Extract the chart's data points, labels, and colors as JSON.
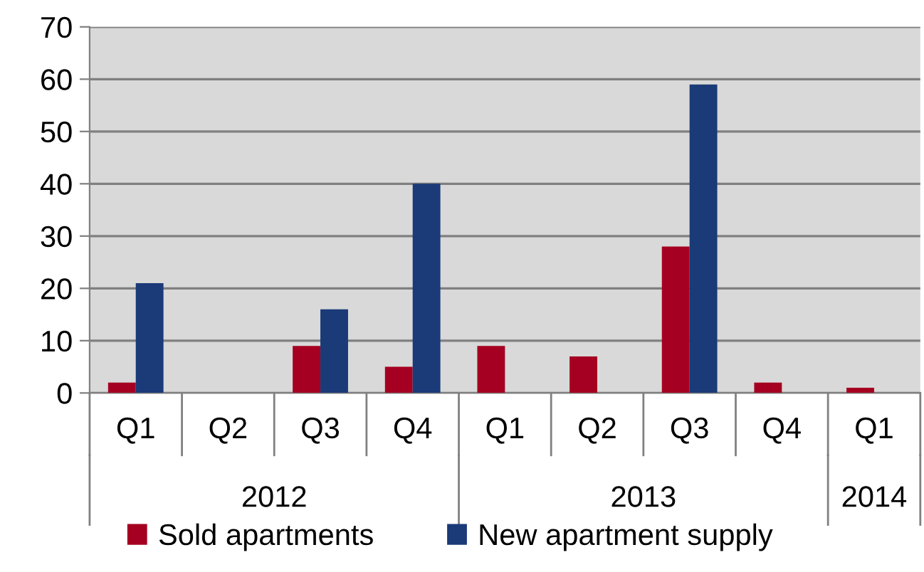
{
  "chart_data": {
    "type": "bar",
    "categories": [
      "Q1",
      "Q2",
      "Q3",
      "Q4",
      "Q1",
      "Q2",
      "Q3",
      "Q4",
      "Q1"
    ],
    "series": [
      {
        "name": "Sold apartments",
        "color": "#a50021",
        "values": [
          2,
          0,
          9,
          5,
          9,
          7,
          28,
          2,
          1
        ]
      },
      {
        "name": "New apartment supply",
        "color": "#1a3a78",
        "values": [
          21,
          0,
          16,
          40,
          0,
          0,
          59,
          0,
          0
        ]
      }
    ],
    "ylim": [
      0,
      70
    ],
    "yticks": [
      0,
      10,
      20,
      30,
      40,
      50,
      60,
      70
    ],
    "grid": "y",
    "legend": "bottom",
    "annotations": [
      "2012",
      "2013",
      "2014"
    ]
  }
}
